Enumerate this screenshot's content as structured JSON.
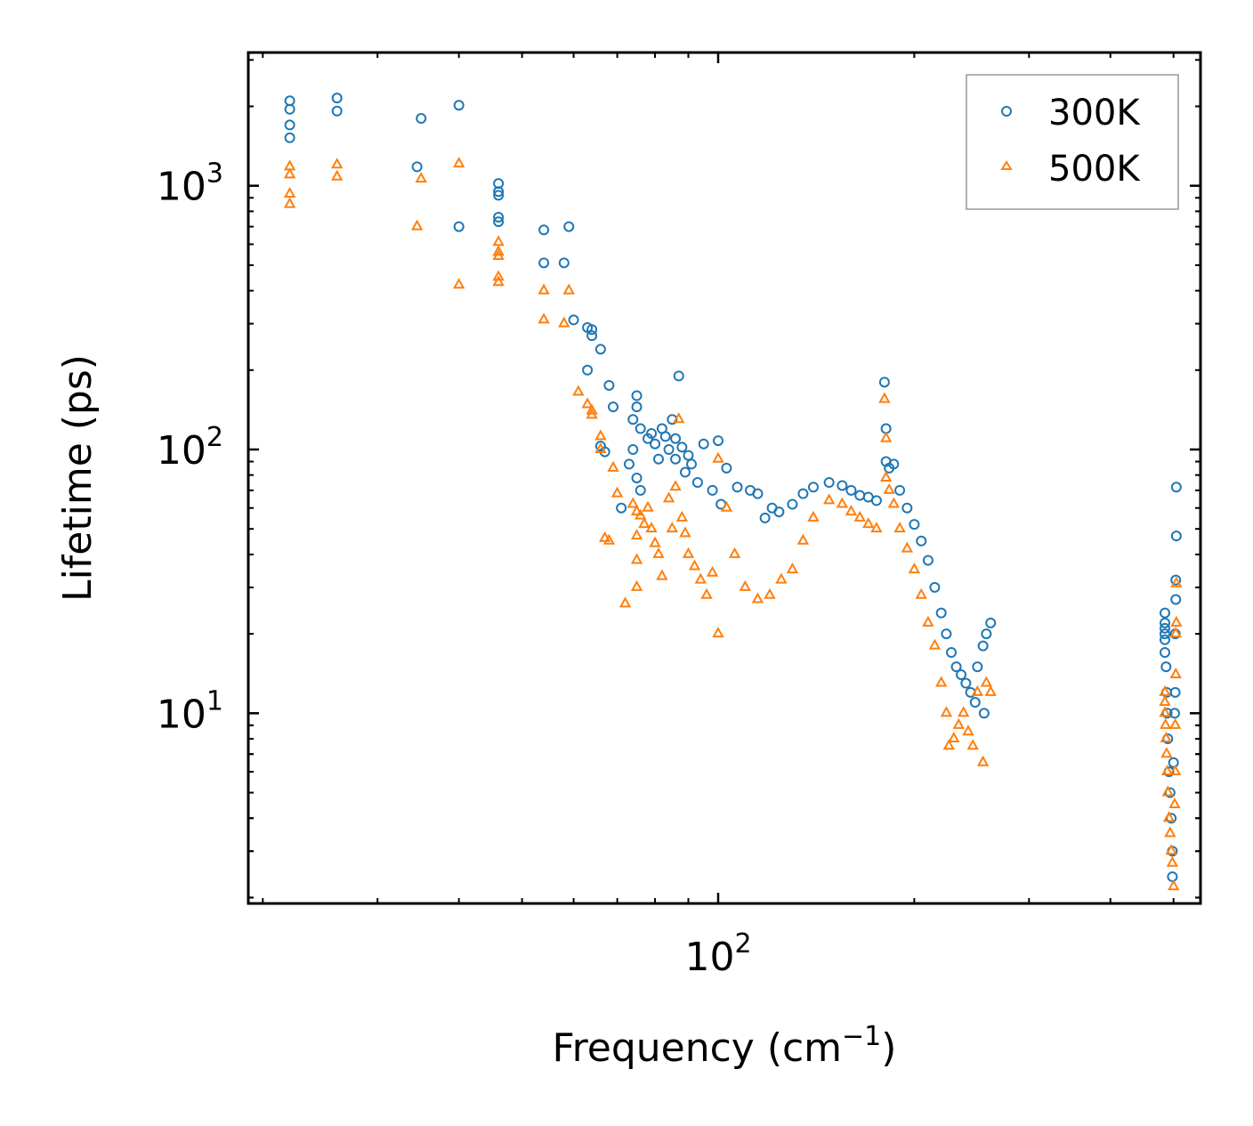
{
  "chart_data": {
    "type": "scatter",
    "title": "",
    "xlabel": "Frequency (cm",
    "xlabel_exponent": "−1",
    "xlabel_suffix": ")",
    "ylabel": "Lifetime (ps)",
    "xscale": "log",
    "yscale": "log",
    "xlim": [
      19,
      550
    ],
    "ylim": [
      1.9,
      3200
    ],
    "x_ticks": [
      {
        "value": 100,
        "base": "10",
        "exp": "2"
      }
    ],
    "y_ticks": [
      {
        "value": 10,
        "base": "10",
        "exp": "1"
      },
      {
        "value": 100,
        "base": "10",
        "exp": "2"
      },
      {
        "value": 1000,
        "base": "10",
        "exp": "3"
      }
    ],
    "legend_position": "top-right",
    "series": [
      {
        "name": "300K",
        "marker": "circle",
        "color": "#1f77b4",
        "points": [
          [
            22.0,
            2100
          ],
          [
            22.0,
            1950
          ],
          [
            22.0,
            1700
          ],
          [
            22.0,
            1520
          ],
          [
            26.0,
            2150
          ],
          [
            26.0,
            1920
          ],
          [
            34.5,
            1180
          ],
          [
            35.0,
            1800
          ],
          [
            40.0,
            2020
          ],
          [
            40.0,
            700
          ],
          [
            46.0,
            1020
          ],
          [
            46.0,
            950
          ],
          [
            46.0,
            920
          ],
          [
            46.0,
            760
          ],
          [
            46.0,
            730
          ],
          [
            54.0,
            680
          ],
          [
            54.0,
            510
          ],
          [
            58.0,
            510
          ],
          [
            59.0,
            700
          ],
          [
            60.0,
            310
          ],
          [
            63.0,
            290
          ],
          [
            64.0,
            285
          ],
          [
            64.0,
            270
          ],
          [
            66.0,
            240
          ],
          [
            63.0,
            200
          ],
          [
            68.0,
            175
          ],
          [
            69.0,
            145
          ],
          [
            66.0,
            103
          ],
          [
            67.0,
            98
          ],
          [
            71.0,
            60
          ],
          [
            73.0,
            88
          ],
          [
            74.0,
            130
          ],
          [
            75.0,
            160
          ],
          [
            75.0,
            145
          ],
          [
            74.0,
            100
          ],
          [
            75.0,
            78
          ],
          [
            76.0,
            120
          ],
          [
            76.0,
            70
          ],
          [
            78.0,
            110
          ],
          [
            79.0,
            115
          ],
          [
            80.0,
            105
          ],
          [
            81.0,
            92
          ],
          [
            82.0,
            120
          ],
          [
            83.0,
            112
          ],
          [
            84.0,
            100
          ],
          [
            85.0,
            130
          ],
          [
            86.0,
            110
          ],
          [
            86.0,
            92
          ],
          [
            87.0,
            190
          ],
          [
            88.0,
            102
          ],
          [
            89.0,
            82
          ],
          [
            90.0,
            95
          ],
          [
            91.0,
            88
          ],
          [
            93.0,
            75
          ],
          [
            95.0,
            105
          ],
          [
            98.0,
            70
          ],
          [
            100.0,
            108
          ],
          [
            101.0,
            62
          ],
          [
            103.0,
            85
          ],
          [
            107.0,
            72
          ],
          [
            112.0,
            70
          ],
          [
            115.0,
            68
          ],
          [
            118.0,
            55
          ],
          [
            121.0,
            60
          ],
          [
            124.0,
            58
          ],
          [
            130.0,
            62
          ],
          [
            135.0,
            68
          ],
          [
            140.0,
            72
          ],
          [
            148.0,
            75
          ],
          [
            155.0,
            73
          ],
          [
            160.0,
            70
          ],
          [
            165.0,
            67
          ],
          [
            170.0,
            66
          ],
          [
            175.0,
            64
          ],
          [
            180.0,
            180
          ],
          [
            181.0,
            120
          ],
          [
            181.0,
            90
          ],
          [
            183.0,
            85
          ],
          [
            186.0,
            88
          ],
          [
            190.0,
            70
          ],
          [
            195.0,
            60
          ],
          [
            200.0,
            52
          ],
          [
            205.0,
            45
          ],
          [
            210.0,
            38
          ],
          [
            215.0,
            30
          ],
          [
            220.0,
            24
          ],
          [
            224.0,
            20
          ],
          [
            228.0,
            17
          ],
          [
            232.0,
            15
          ],
          [
            236.0,
            14
          ],
          [
            240.0,
            13
          ],
          [
            244.0,
            12
          ],
          [
            248.0,
            11
          ],
          [
            250.0,
            15
          ],
          [
            255.0,
            18
          ],
          [
            258.0,
            20
          ],
          [
            262.0,
            22
          ],
          [
            256.0,
            10
          ],
          [
            485.0,
            24
          ],
          [
            485.0,
            22
          ],
          [
            485.0,
            21
          ],
          [
            485.0,
            20
          ],
          [
            485.0,
            19
          ],
          [
            485.0,
            17
          ],
          [
            487.0,
            15
          ],
          [
            488.0,
            12
          ],
          [
            489.0,
            10
          ],
          [
            490.0,
            8
          ],
          [
            492.0,
            6
          ],
          [
            494.0,
            5
          ],
          [
            496.0,
            4
          ],
          [
            498.0,
            3
          ],
          [
            498.0,
            2.4
          ],
          [
            500.0,
            6.5
          ],
          [
            502.0,
            10
          ],
          [
            503.0,
            12
          ],
          [
            503.0,
            20
          ],
          [
            504.0,
            27
          ],
          [
            504.0,
            32
          ],
          [
            505.0,
            47
          ],
          [
            505.0,
            72
          ]
        ]
      },
      {
        "name": "500K",
        "marker": "triangle",
        "color": "#ff7f0e",
        "points": [
          [
            22.0,
            1180
          ],
          [
            22.0,
            1100
          ],
          [
            22.0,
            930
          ],
          [
            22.0,
            850
          ],
          [
            26.0,
            1200
          ],
          [
            26.0,
            1080
          ],
          [
            34.5,
            700
          ],
          [
            35.0,
            1060
          ],
          [
            40.0,
            1210
          ],
          [
            40.0,
            420
          ],
          [
            46.0,
            610
          ],
          [
            46.0,
            560
          ],
          [
            46.0,
            540
          ],
          [
            46.0,
            450
          ],
          [
            46.0,
            430
          ],
          [
            54.0,
            400
          ],
          [
            54.0,
            310
          ],
          [
            58.0,
            300
          ],
          [
            59.0,
            400
          ],
          [
            61.0,
            165
          ],
          [
            63.0,
            148
          ],
          [
            64.0,
            140
          ],
          [
            64.0,
            135
          ],
          [
            66.0,
            112
          ],
          [
            66.0,
            100
          ],
          [
            67.0,
            46
          ],
          [
            68.0,
            45
          ],
          [
            69.0,
            85
          ],
          [
            70.0,
            68
          ],
          [
            72.0,
            26
          ],
          [
            74.0,
            62
          ],
          [
            75.0,
            58
          ],
          [
            75.0,
            47
          ],
          [
            75.0,
            38
          ],
          [
            75.0,
            30
          ],
          [
            76.0,
            56
          ],
          [
            77.0,
            52
          ],
          [
            78.0,
            60
          ],
          [
            79.0,
            50
          ],
          [
            80.0,
            44
          ],
          [
            81.0,
            40
          ],
          [
            82.0,
            33
          ],
          [
            84.0,
            65
          ],
          [
            85.0,
            50
          ],
          [
            86.0,
            72
          ],
          [
            87.0,
            130
          ],
          [
            88.0,
            55
          ],
          [
            89.0,
            48
          ],
          [
            90.0,
            40
          ],
          [
            92.0,
            36
          ],
          [
            94.0,
            32
          ],
          [
            96.0,
            28
          ],
          [
            98.0,
            34
          ],
          [
            100.0,
            20
          ],
          [
            100.0,
            92
          ],
          [
            103.0,
            60
          ],
          [
            106.0,
            40
          ],
          [
            110.0,
            30
          ],
          [
            115.0,
            27
          ],
          [
            120.0,
            28
          ],
          [
            125.0,
            32
          ],
          [
            130.0,
            35
          ],
          [
            135.0,
            45
          ],
          [
            140.0,
            55
          ],
          [
            148.0,
            64
          ],
          [
            155.0,
            62
          ],
          [
            160.0,
            58
          ],
          [
            165.0,
            55
          ],
          [
            170.0,
            52
          ],
          [
            175.0,
            50
          ],
          [
            180.0,
            155
          ],
          [
            181.0,
            110
          ],
          [
            181.0,
            78
          ],
          [
            183.0,
            70
          ],
          [
            186.0,
            62
          ],
          [
            190.0,
            50
          ],
          [
            195.0,
            42
          ],
          [
            200.0,
            35
          ],
          [
            205.0,
            28
          ],
          [
            210.0,
            22
          ],
          [
            215.0,
            18
          ],
          [
            220.0,
            13
          ],
          [
            224.0,
            10
          ],
          [
            226.0,
            7.5
          ],
          [
            230.0,
            8
          ],
          [
            234.0,
            9
          ],
          [
            238.0,
            10
          ],
          [
            242.0,
            8.5
          ],
          [
            246.0,
            7.5
          ],
          [
            250.0,
            12
          ],
          [
            255.0,
            6.5
          ],
          [
            258.0,
            13
          ],
          [
            262.0,
            12
          ],
          [
            485.0,
            12
          ],
          [
            485.0,
            11
          ],
          [
            485.0,
            10
          ],
          [
            486.0,
            9
          ],
          [
            487.0,
            8
          ],
          [
            488.0,
            7
          ],
          [
            489.0,
            6
          ],
          [
            490.0,
            5
          ],
          [
            492.0,
            4
          ],
          [
            494.0,
            3.5
          ],
          [
            496.0,
            3
          ],
          [
            498.0,
            2.7
          ],
          [
            500.0,
            2.2
          ],
          [
            502.0,
            4.5
          ],
          [
            503.0,
            6
          ],
          [
            503.0,
            9
          ],
          [
            504.0,
            14
          ],
          [
            504.0,
            20
          ],
          [
            505.0,
            22
          ],
          [
            505.0,
            31
          ]
        ]
      }
    ]
  }
}
